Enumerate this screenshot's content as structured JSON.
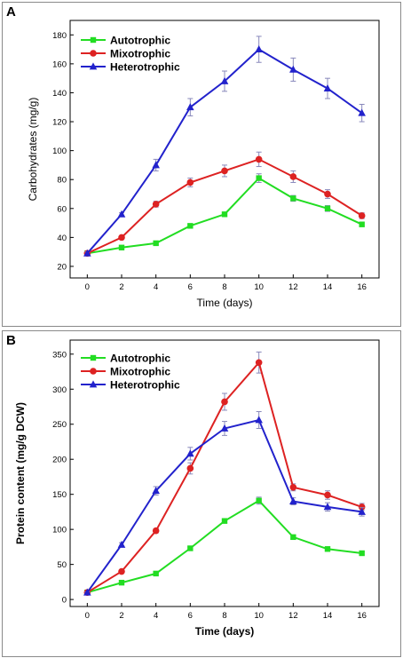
{
  "chart_data": [
    {
      "panel_label": "A",
      "type": "line",
      "xlabel": "Time (days)",
      "ylabel": "Carbohydrates (mg/g)",
      "x": [
        0,
        2,
        4,
        6,
        8,
        10,
        12,
        14,
        16
      ],
      "xticks": [
        0,
        2,
        4,
        6,
        8,
        10,
        12,
        14,
        16
      ],
      "yticks": [
        20,
        40,
        60,
        80,
        100,
        120,
        140,
        160,
        180
      ],
      "xlim": [
        -1,
        17
      ],
      "ylim": [
        12,
        190
      ],
      "legend_position": "top-left",
      "series": [
        {
          "name": "Autotrophic",
          "color": "#22dd22",
          "marker": "square",
          "values": [
            29,
            33,
            36,
            48,
            56,
            81,
            67,
            60,
            49
          ],
          "errors": [
            1,
            1,
            1,
            1,
            1,
            3,
            2,
            2,
            1
          ]
        },
        {
          "name": "Mixotrophic",
          "color": "#dd2222",
          "marker": "circle",
          "values": [
            29,
            40,
            63,
            78,
            86,
            94,
            82,
            70,
            55
          ],
          "errors": [
            1,
            1,
            2,
            3,
            4,
            5,
            4,
            3,
            2
          ]
        },
        {
          "name": "Heterotrophic",
          "color": "#2222cc",
          "marker": "triangle",
          "values": [
            29,
            56,
            90,
            130,
            148,
            170,
            156,
            143,
            126
          ],
          "errors": [
            1,
            1,
            4,
            6,
            7,
            9,
            8,
            7,
            6
          ]
        }
      ]
    },
    {
      "panel_label": "B",
      "type": "line",
      "xlabel": "Time (days)",
      "ylabel": "Protein content (mg/g DCW)",
      "x": [
        0,
        2,
        4,
        6,
        8,
        10,
        12,
        14,
        16
      ],
      "xticks": [
        0,
        2,
        4,
        6,
        8,
        10,
        12,
        14,
        16
      ],
      "yticks": [
        0,
        50,
        100,
        150,
        200,
        250,
        300,
        350
      ],
      "xlim": [
        -1,
        17
      ],
      "ylim": [
        -10,
        370
      ],
      "legend_position": "top-left",
      "series": [
        {
          "name": "Autotrophic",
          "color": "#22dd22",
          "marker": "square",
          "values": [
            10,
            24,
            37,
            73,
            112,
            141,
            89,
            72,
            66
          ],
          "errors": [
            1,
            1,
            1,
            2,
            3,
            5,
            3,
            2,
            2
          ]
        },
        {
          "name": "Mixotrophic",
          "color": "#dd2222",
          "marker": "circle",
          "values": [
            10,
            40,
            98,
            187,
            282,
            338,
            160,
            149,
            132
          ],
          "errors": [
            1,
            2,
            3,
            8,
            12,
            15,
            5,
            6,
            5
          ]
        },
        {
          "name": "Heterotrophic",
          "color": "#2222cc",
          "marker": "triangle",
          "values": [
            10,
            78,
            155,
            208,
            244,
            256,
            140,
            132,
            125
          ],
          "errors": [
            1,
            3,
            6,
            9,
            10,
            12,
            5,
            6,
            6
          ]
        }
      ]
    }
  ]
}
